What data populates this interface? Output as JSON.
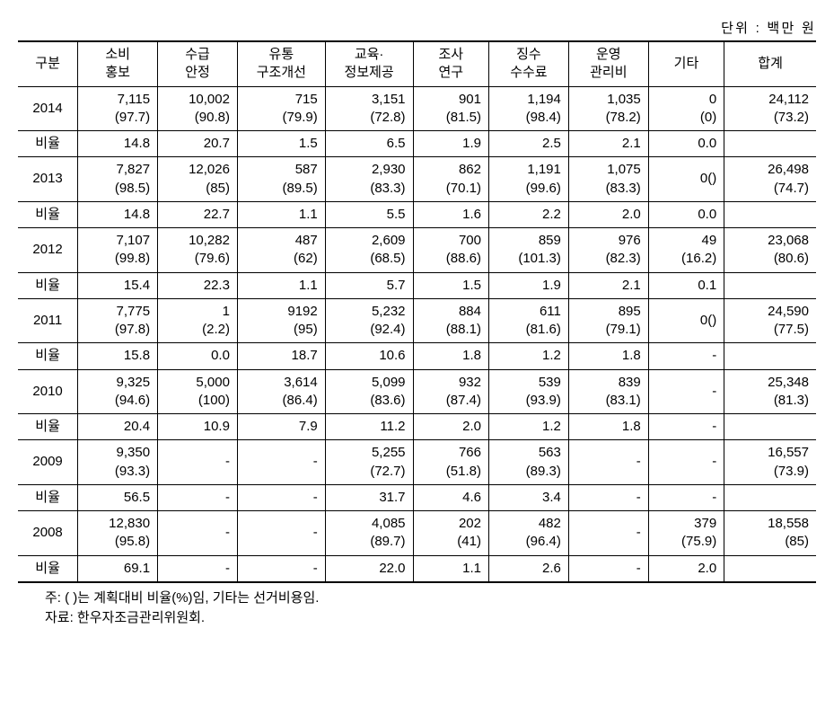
{
  "unit_label": "단위 : 백만 원",
  "headers": [
    "구분",
    "소비\n홍보",
    "수급\n안정",
    "유통\n구조개선",
    "교육·\n정보제공",
    "조사\n연구",
    "징수\n수수료",
    "운영\n관리비",
    "기타",
    "합계"
  ],
  "ratio_label": "비율",
  "groups": [
    {
      "year": "2014",
      "values": [
        "7,115\n(97.7)",
        "10,002\n(90.8)",
        "715\n(79.9)",
        "3,151\n(72.8)",
        "901\n(81.5)",
        "1,194\n(98.4)",
        "1,035\n(78.2)",
        "0\n(0)",
        "24,112\n(73.2)"
      ],
      "ratios": [
        "14.8",
        "20.7",
        "1.5",
        "6.5",
        "1.9",
        "2.5",
        "2.1",
        "0.0",
        ""
      ]
    },
    {
      "year": "2013",
      "values": [
        "7,827\n(98.5)",
        "12,026\n(85)",
        "587\n(89.5)",
        "2,930\n(83.3)",
        "862\n(70.1)",
        "1,191\n(99.6)",
        "1,075\n(83.3)",
        "0()",
        "26,498\n(74.7)"
      ],
      "ratios": [
        "14.8",
        "22.7",
        "1.1",
        "5.5",
        "1.6",
        "2.2",
        "2.0",
        "0.0",
        ""
      ]
    },
    {
      "year": "2012",
      "values": [
        "7,107\n(99.8)",
        "10,282\n(79.6)",
        "487\n(62)",
        "2,609\n(68.5)",
        "700\n(88.6)",
        "859\n(101.3)",
        "976\n(82.3)",
        "49\n(16.2)",
        "23,068\n(80.6)"
      ],
      "ratios": [
        "15.4",
        "22.3",
        "1.1",
        "5.7",
        "1.5",
        "1.9",
        "2.1",
        "0.1",
        ""
      ]
    },
    {
      "year": "2011",
      "values": [
        "7,775\n(97.8)",
        "1\n(2.2)",
        "9192\n(95)",
        "5,232\n(92.4)",
        "884\n(88.1)",
        "611\n(81.6)",
        "895\n(79.1)",
        "0()",
        "24,590\n(77.5)"
      ],
      "ratios": [
        "15.8",
        "0.0",
        "18.7",
        "10.6",
        "1.8",
        "1.2",
        "1.8",
        "-",
        ""
      ]
    },
    {
      "year": "2010",
      "values": [
        "9,325\n(94.6)",
        "5,000\n(100)",
        "3,614\n(86.4)",
        "5,099\n(83.6)",
        "932\n(87.4)",
        "539\n(93.9)",
        "839\n(83.1)",
        "-",
        "25,348\n(81.3)"
      ],
      "ratios": [
        "20.4",
        "10.9",
        "7.9",
        "11.2",
        "2.0",
        "1.2",
        "1.8",
        "-",
        ""
      ]
    },
    {
      "year": "2009",
      "values": [
        "9,350\n(93.3)",
        "-",
        "-",
        "5,255\n(72.7)",
        "766\n(51.8)",
        "563\n(89.3)",
        "-",
        "-",
        "16,557\n(73.9)"
      ],
      "ratios": [
        "56.5",
        "-",
        "-",
        "31.7",
        "4.6",
        "3.4",
        "-",
        "-",
        ""
      ]
    },
    {
      "year": "2008",
      "values": [
        "12,830\n(95.8)",
        "-",
        "-",
        "4,085\n(89.7)",
        "202\n(41)",
        "482\n(96.4)",
        "-",
        "379\n(75.9)",
        "18,558\n(85)"
      ],
      "ratios": [
        "69.1",
        "-",
        "-",
        "22.0",
        "1.1",
        "2.6",
        "-",
        "2.0",
        ""
      ]
    }
  ],
  "note1": "주: ( )는 계획대비 비율(%)임, 기타는 선거비용임.",
  "note2": "자료: 한우자조금관리위원회."
}
